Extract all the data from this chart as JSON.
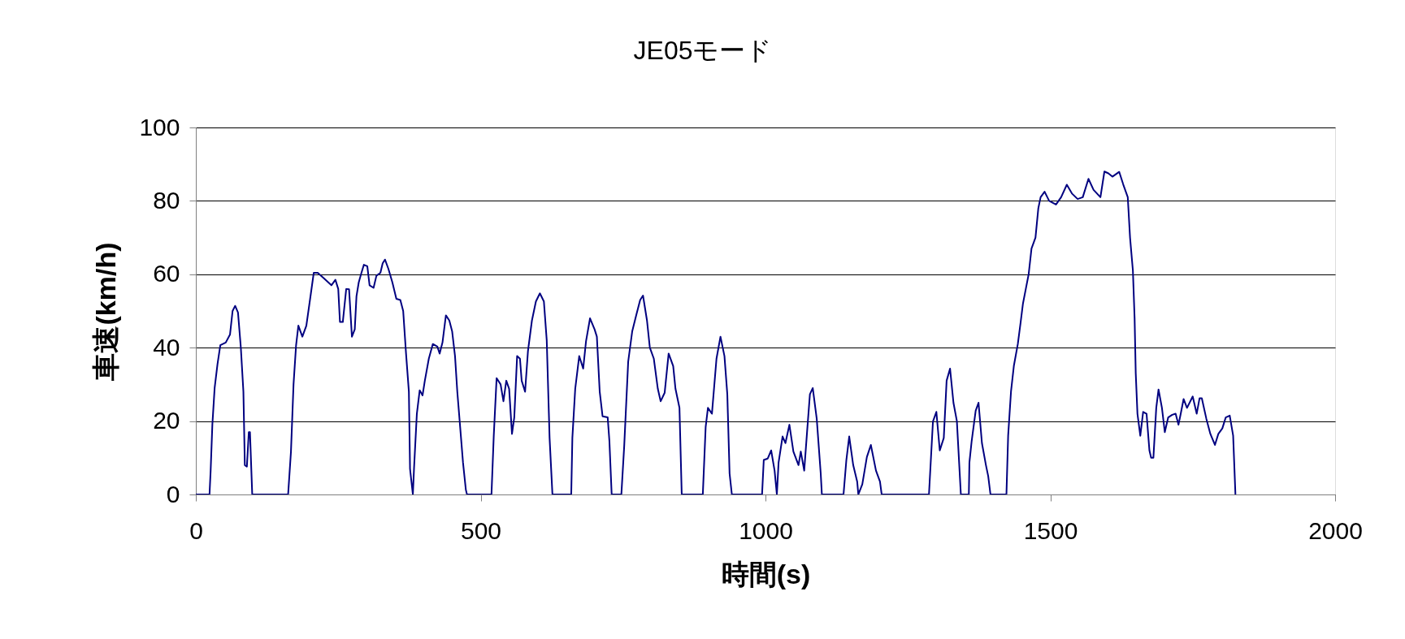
{
  "chart_data": {
    "type": "line",
    "title": "JE05モード",
    "xlabel": "時間(s)",
    "ylabel": "車速(km/h)",
    "xlim": [
      0,
      2000
    ],
    "xticks": [
      0,
      500,
      1000,
      1500,
      2000
    ],
    "ylim": [
      0,
      100
    ],
    "yticks": [
      0,
      20,
      40,
      60,
      80,
      100
    ],
    "grid": "y",
    "marker": "none",
    "line_style": "solid",
    "series": [
      {
        "color": "#000080",
        "x": [
          0,
          24,
          26,
          29,
          33,
          38,
          43,
          52.5,
          60,
          64.5,
          69,
          74,
          79,
          83.5,
          86,
          89.6,
          93,
          95,
          99,
          162,
          167,
          171.5,
          176,
          180,
          187,
          194,
          200,
          207,
          214,
          224,
          238,
          245,
          250,
          253,
          258,
          264,
          269,
          274,
          279,
          282,
          286,
          290,
          295,
          301,
          305,
          312,
          317,
          324,
          328,
          332,
          338,
          345,
          352,
          359,
          364,
          369,
          374,
          376,
          381,
          383,
          388,
          393,
          398,
          402,
          409,
          416,
          424,
          428,
          433,
          439,
          445,
          450,
          455,
          459,
          464,
          469,
          474,
          476,
          519,
          523,
          528,
          535,
          540,
          545,
          550,
          555,
          559,
          564,
          569,
          572,
          578,
          583,
          590,
          597,
          604,
          611,
          616,
          621,
          626,
          659,
          661,
          666,
          673,
          680,
          685,
          692,
          700,
          704,
          709,
          714,
          723,
          726,
          730,
          747,
          752,
          759,
          766,
          773,
          780,
          785,
          792,
          797,
          804,
          811,
          816,
          823,
          830,
          838,
          842,
          849,
          853,
          890,
          895,
          899,
          906,
          914,
          921,
          928,
          933,
          937,
          941,
          994,
          997,
          1004,
          1010,
          1016,
          1020,
          1023,
          1030,
          1035,
          1042,
          1049,
          1058,
          1062,
          1068,
          1073,
          1078,
          1083,
          1090,
          1097,
          1099,
          1137,
          1142,
          1147,
          1154,
          1161,
          1163,
          1170,
          1178,
          1185,
          1194,
          1201,
          1204,
          1287,
          1294,
          1300,
          1306,
          1313,
          1318,
          1324,
          1330,
          1336,
          1341,
          1343,
          1357,
          1358,
          1362,
          1369,
          1374,
          1380,
          1387,
          1391,
          1395,
          1423,
          1426,
          1431,
          1436,
          1443,
          1448,
          1452,
          1457,
          1462,
          1467,
          1474,
          1479,
          1483,
          1490,
          1498,
          1510,
          1519,
          1529,
          1538,
          1548,
          1557,
          1567,
          1576,
          1588,
          1595,
          1602,
          1609,
          1621,
          1628,
          1636,
          1640,
          1645,
          1648,
          1650,
          1653,
          1658,
          1663,
          1669,
          1674,
          1677,
          1681,
          1686,
          1690,
          1696,
          1701,
          1707,
          1714,
          1720,
          1725,
          1729,
          1734,
          1740,
          1750,
          1757,
          1762,
          1766,
          1774,
          1781,
          1789,
          1795,
          1802,
          1808,
          1815,
          1821,
          1825
        ],
        "values": [
          0,
          0,
          6.5,
          19,
          29,
          35.5,
          40.7,
          41.4,
          43.6,
          50,
          51.4,
          49.6,
          40,
          28,
          8,
          7.6,
          17,
          17,
          0,
          0,
          11.7,
          30,
          40.7,
          46,
          43,
          46,
          52.6,
          60.4,
          60.4,
          59,
          57,
          58.5,
          56,
          47,
          47,
          56,
          55.9,
          43,
          45,
          54,
          57.8,
          60,
          62.6,
          62.2,
          57,
          56.3,
          59.6,
          60.4,
          63,
          64,
          61.5,
          57.8,
          53.3,
          53,
          50,
          38.4,
          28,
          7,
          0,
          7,
          22,
          28.4,
          27,
          31,
          37,
          41,
          40.3,
          38.4,
          41.4,
          48.8,
          47.4,
          44.4,
          37.7,
          28,
          18.4,
          8.7,
          1.3,
          0,
          0,
          16,
          31.7,
          30,
          25.4,
          31,
          28.8,
          16.5,
          21,
          37.7,
          37,
          31,
          28,
          39,
          47.4,
          52.6,
          54.8,
          52.6,
          42,
          15.4,
          0,
          0,
          15.4,
          28.8,
          37.7,
          34.3,
          41.8,
          48,
          45,
          43,
          28,
          21.3,
          21,
          14.6,
          0,
          0,
          13.2,
          36.2,
          44.4,
          48.8,
          53,
          54.2,
          47.4,
          40,
          37,
          28.8,
          25.4,
          27.7,
          38.4,
          35,
          28.8,
          23.6,
          0,
          0,
          18.4,
          23.6,
          22,
          37,
          43,
          37.7,
          27.3,
          5.7,
          0,
          0,
          9.4,
          9.8,
          12,
          6.5,
          0,
          8.7,
          15.8,
          14,
          19,
          11.7,
          8,
          11.7,
          6.5,
          17,
          27.3,
          29,
          20.6,
          5.7,
          0,
          0,
          9.4,
          15.8,
          8,
          3.5,
          0,
          2.8,
          10.2,
          13.5,
          6.5,
          3.5,
          0,
          0,
          19.9,
          22.5,
          12,
          15.4,
          31,
          34.3,
          25,
          20,
          5.7,
          0,
          0,
          8.7,
          14.6,
          22.8,
          25,
          14,
          8,
          5,
          0,
          0,
          16,
          28,
          35,
          41,
          47,
          52,
          56,
          60,
          67,
          70,
          78,
          81,
          82.5,
          80,
          79,
          81,
          84.4,
          82,
          80.5,
          81,
          86,
          83,
          81,
          88,
          87.5,
          86.6,
          87.9,
          84.5,
          81,
          70,
          61,
          48,
          33,
          22,
          16,
          22.5,
          22,
          12,
          10,
          10,
          23.6,
          28.6,
          23.6,
          17,
          21,
          21.7,
          22,
          19,
          22,
          26,
          23.6,
          26.7,
          22,
          26.2,
          26.2,
          20.6,
          16.5,
          13.5,
          16.5,
          18,
          21,
          21.5,
          16,
          0
        ]
      }
    ]
  }
}
